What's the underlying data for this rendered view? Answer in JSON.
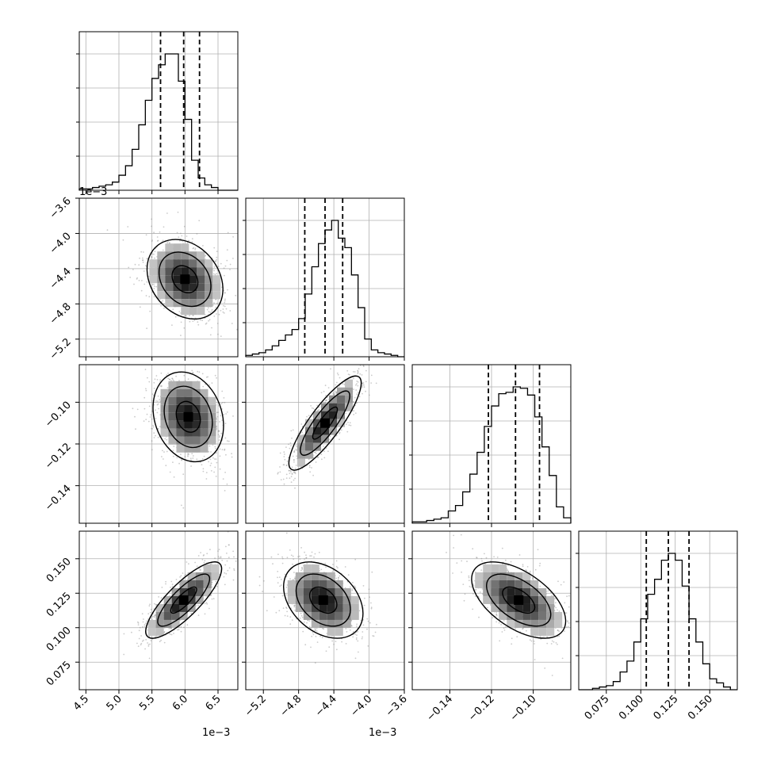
{
  "chart_data": {
    "type": "corner",
    "grid": true,
    "params": [
      {
        "index": 0,
        "range": [
          4.4,
          6.8
        ],
        "ticks": [
          4.5,
          5.0,
          5.5,
          6.0,
          6.5
        ],
        "tick_labels": [
          "4.5",
          "5.0",
          "5.5",
          "6.0",
          "6.5"
        ],
        "offset_label": "1e−3",
        "quantiles": [
          5.63,
          5.98,
          6.22
        ]
      },
      {
        "index": 1,
        "range": [
          -5.4,
          -3.6
        ],
        "ticks": [
          -5.2,
          -4.8,
          -4.4,
          -4.0,
          -3.6
        ],
        "tick_labels": [
          "−5.2",
          "−4.8",
          "−4.4",
          "−4.0",
          "−3.6"
        ],
        "offset_label": "1e−3",
        "quantiles": [
          -4.73,
          -4.5,
          -4.3
        ]
      },
      {
        "index": 2,
        "range": [
          -0.158,
          -0.082
        ],
        "ticks": [
          -0.14,
          -0.12,
          -0.1
        ],
        "tick_labels": [
          "−0.14",
          "−0.12",
          "−0.10"
        ],
        "offset_label": "",
        "quantiles": [
          -0.1215,
          -0.1085,
          -0.097
        ]
      },
      {
        "index": 3,
        "range": [
          0.055,
          0.17
        ],
        "ticks": [
          0.075,
          0.1,
          0.125,
          0.15
        ],
        "tick_labels": [
          "0.075",
          "0.100",
          "0.125",
          "0.150"
        ],
        "offset_label": "",
        "quantiles": [
          0.104,
          0.12,
          0.135
        ]
      }
    ],
    "histograms": [
      {
        "param": 0,
        "counts": [
          1,
          1,
          2,
          3,
          4,
          6,
          11,
          18,
          30,
          48,
          66,
          82,
          92,
          100,
          100,
          80,
          52,
          22,
          9,
          4,
          2,
          0,
          0,
          0
        ]
      },
      {
        "param": 1,
        "counts": [
          1,
          2,
          3,
          5,
          8,
          12,
          16,
          20,
          28,
          46,
          66,
          83,
          93,
          100,
          87,
          80,
          60,
          36,
          13,
          5,
          3,
          2,
          1,
          0
        ]
      },
      {
        "param": 2,
        "counts": [
          1,
          1,
          2,
          3,
          4,
          9,
          13,
          23,
          36,
          52,
          71,
          86,
          95,
          96,
          100,
          99,
          94,
          78,
          56,
          35,
          12,
          4
        ]
      },
      {
        "param": 3,
        "counts": [
          0,
          0,
          1,
          2,
          3,
          6,
          13,
          21,
          35,
          52,
          70,
          81,
          95,
          100,
          95,
          76,
          52,
          35,
          19,
          8,
          5,
          2,
          0
        ]
      }
    ],
    "joint": [
      {
        "x": 0,
        "y": 1,
        "center": [
          6.0,
          -4.52
        ],
        "sd": [
          0.28,
          0.22
        ],
        "rho": -0.25
      },
      {
        "x": 0,
        "y": 2,
        "center": [
          6.05,
          -0.107
        ],
        "sd": [
          0.26,
          0.0105
        ],
        "rho": -0.2
      },
      {
        "x": 1,
        "y": 2,
        "center": [
          -4.5,
          -0.11
        ],
        "sd": [
          0.2,
          0.011
        ],
        "rho": 0.85
      },
      {
        "x": 0,
        "y": 3,
        "center": [
          5.98,
          0.12
        ],
        "sd": [
          0.28,
          0.0135
        ],
        "rho": 0.82
      },
      {
        "x": 1,
        "y": 3,
        "center": [
          -4.52,
          0.12
        ],
        "sd": [
          0.22,
          0.0135
        ],
        "rho": -0.35
      },
      {
        "x": 2,
        "y": 3,
        "center": [
          -0.107,
          0.12
        ],
        "sd": [
          0.011,
          0.0135
        ],
        "rho": -0.55
      }
    ]
  }
}
